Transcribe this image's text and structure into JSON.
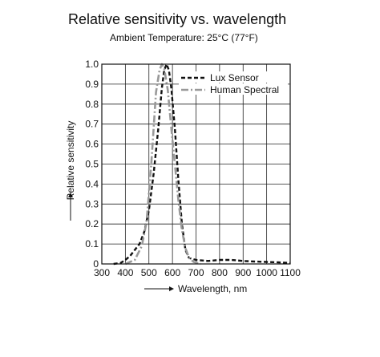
{
  "chart_data": {
    "type": "line",
    "title": "Relative sensitivity vs. wavelength",
    "subtitle": "Ambient Temperature: 25°C  (77°F)",
    "xlabel": "Wavelength, nm",
    "ylabel": "Relative sensitivity",
    "xlim": [
      300,
      1100
    ],
    "ylim": [
      0,
      1.0
    ],
    "x_ticks": [
      300,
      400,
      500,
      600,
      700,
      800,
      900,
      1000,
      1100
    ],
    "y_ticks": [
      0,
      0.1,
      0.2,
      0.3,
      0.4,
      0.5,
      0.6,
      0.7,
      0.8,
      0.9,
      1.0
    ],
    "y_tick_labels": [
      "0",
      "0.1",
      "0.2",
      "0.3",
      "0.4",
      "0.5",
      "0.6",
      "0.7",
      "0.8",
      "0.9",
      "1.0"
    ],
    "grid": true,
    "legend_position": "top-right",
    "series": [
      {
        "name": "Lux Sensor",
        "style": "dashed",
        "color": "#111111",
        "points": [
          [
            350,
            0.0
          ],
          [
            380,
            0.005
          ],
          [
            400,
            0.02
          ],
          [
            420,
            0.04
          ],
          [
            440,
            0.07
          ],
          [
            460,
            0.1
          ],
          [
            480,
            0.16
          ],
          [
            500,
            0.27
          ],
          [
            520,
            0.45
          ],
          [
            540,
            0.68
          ],
          [
            555,
            0.88
          ],
          [
            565,
            0.97
          ],
          [
            575,
            1.0
          ],
          [
            585,
            0.97
          ],
          [
            595,
            0.88
          ],
          [
            610,
            0.68
          ],
          [
            625,
            0.42
          ],
          [
            640,
            0.2
          ],
          [
            655,
            0.07
          ],
          [
            670,
            0.03
          ],
          [
            700,
            0.02
          ],
          [
            750,
            0.015
          ],
          [
            800,
            0.02
          ],
          [
            850,
            0.02
          ],
          [
            900,
            0.015
          ],
          [
            950,
            0.012
          ],
          [
            1000,
            0.01
          ],
          [
            1050,
            0.008
          ],
          [
            1100,
            0.005
          ]
        ]
      },
      {
        "name": "Human Spectral",
        "style": "dash-dot",
        "color": "#999999",
        "points": [
          [
            400,
            0.0
          ],
          [
            440,
            0.02
          ],
          [
            470,
            0.09
          ],
          [
            490,
            0.21
          ],
          [
            510,
            0.5
          ],
          [
            530,
            0.86
          ],
          [
            545,
            0.97
          ],
          [
            555,
            1.0
          ],
          [
            565,
            0.98
          ],
          [
            580,
            0.87
          ],
          [
            595,
            0.68
          ],
          [
            610,
            0.5
          ],
          [
            625,
            0.32
          ],
          [
            640,
            0.17
          ],
          [
            655,
            0.08
          ],
          [
            670,
            0.03
          ],
          [
            690,
            0.01
          ],
          [
            720,
            0.0
          ]
        ]
      }
    ]
  }
}
